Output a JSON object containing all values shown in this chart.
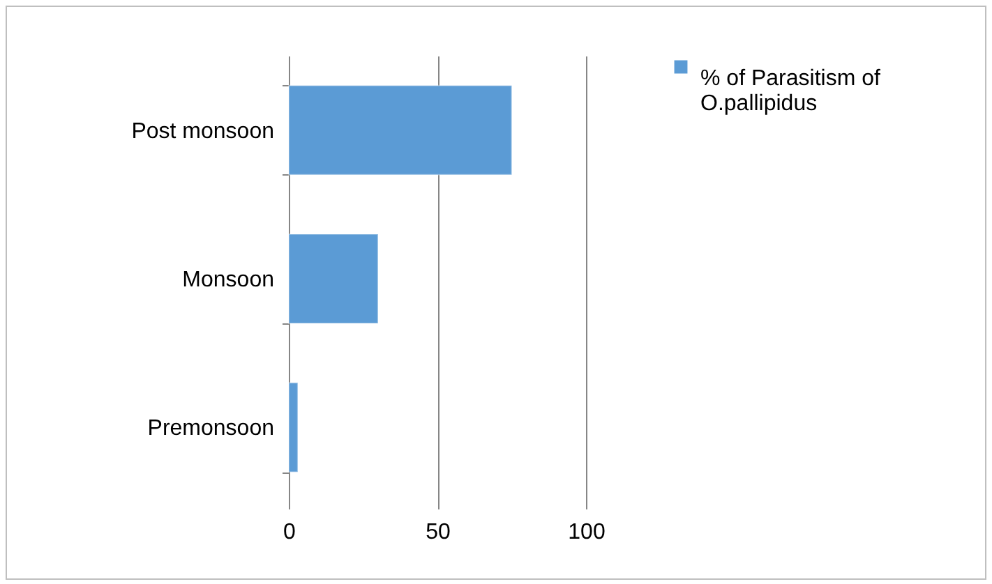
{
  "chart_data": {
    "type": "bar",
    "orientation": "horizontal",
    "categories": [
      "Post monsoon",
      "Monsoon",
      "Premonsoon"
    ],
    "series": [
      {
        "name": "% of Parasitism of O.pallipidus",
        "color": "#5b9bd5",
        "values": [
          75,
          30,
          3
        ]
      }
    ],
    "xlim": [
      0,
      100
    ],
    "xticks": [
      0,
      50,
      100
    ],
    "grid": "x",
    "legend": "right"
  }
}
